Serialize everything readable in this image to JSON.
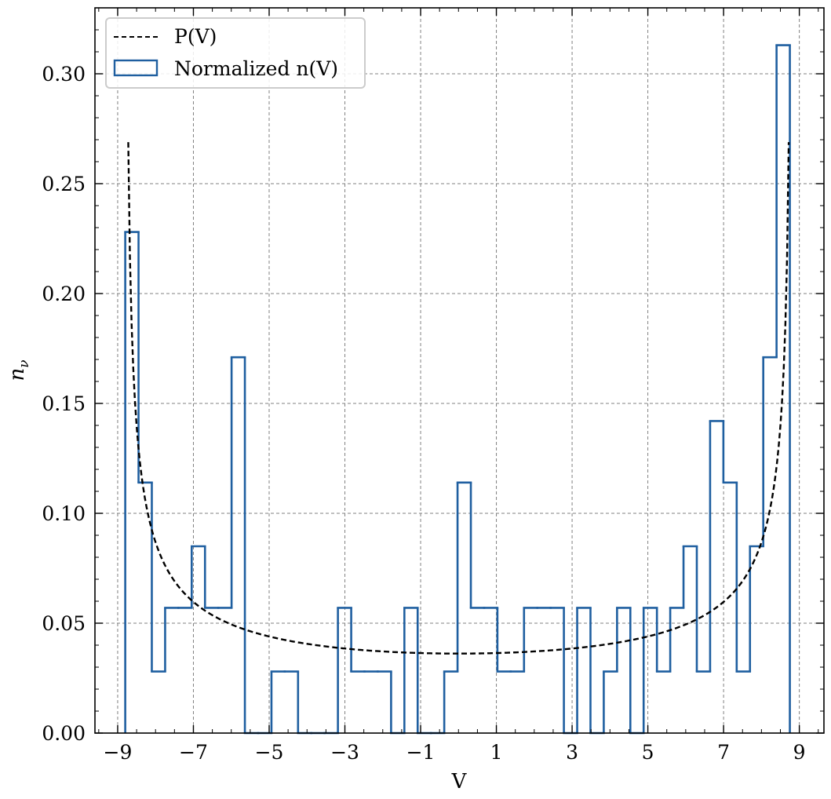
{
  "chart_data": {
    "type": "histogram",
    "xlabel": "V",
    "ylabel_base": "n",
    "ylabel_sub": "ν",
    "xlim": [
      -9.6,
      9.65
    ],
    "ylim": [
      0,
      0.33
    ],
    "x_ticks": [
      -9,
      -7,
      -5,
      -3,
      -1,
      1,
      3,
      5,
      7,
      9
    ],
    "x_tick_labels": [
      "−9",
      "−7",
      "−5",
      "−3",
      "−1",
      "1",
      "3",
      "5",
      "7",
      "9"
    ],
    "y_ticks": [
      0,
      0.05,
      0.1,
      0.15,
      0.2,
      0.25,
      0.3
    ],
    "y_tick_labels": [
      "0.00",
      "0.05",
      "0.10",
      "0.15",
      "0.20",
      "0.25",
      "0.30"
    ],
    "grid": true,
    "legend_position": "top-left",
    "colors": {
      "histogram": "#1f5fa0",
      "curve": "#000000",
      "grid": "#808080"
    },
    "series": [
      {
        "name": "P(V)",
        "kind": "curve",
        "amplitude": 8.8,
        "x_range": [
          -8.72,
          8.72
        ]
      },
      {
        "name": "Normalized n(V)",
        "kind": "histogram",
        "bin_edges": [
          -8.8,
          -8.449,
          -8.098,
          -7.747,
          -7.396,
          -7.045,
          -6.694,
          -6.343,
          -5.992,
          -5.641,
          -5.29,
          -4.939,
          -4.588,
          -4.237,
          -3.886,
          -3.535,
          -3.184,
          -2.833,
          -2.482,
          -2.131,
          -1.78,
          -1.429,
          -1.078,
          -0.727,
          -0.376,
          -0.025,
          0.326,
          0.677,
          1.028,
          1.379,
          1.73,
          2.081,
          2.432,
          2.783,
          3.134,
          3.485,
          3.836,
          4.187,
          4.538,
          4.889,
          5.24,
          5.591,
          5.942,
          6.293,
          6.644,
          6.995,
          7.346,
          7.697,
          8.048,
          8.399,
          8.75
        ],
        "values": [
          0.228,
          0.114,
          0.028,
          0.057,
          0.057,
          0.085,
          0.057,
          0.057,
          0.171,
          0.0,
          0.0,
          0.028,
          0.028,
          0.0,
          0.0,
          0.0,
          0.057,
          0.028,
          0.028,
          0.028,
          0.0,
          0.057,
          0.0,
          0.0,
          0.028,
          0.114,
          0.057,
          0.057,
          0.028,
          0.028,
          0.057,
          0.057,
          0.057,
          0.0,
          0.057,
          0.0,
          0.028,
          0.057,
          0.0,
          0.057,
          0.028,
          0.057,
          0.085,
          0.028,
          0.142,
          0.114,
          0.028,
          0.085,
          0.171,
          0.313
        ]
      }
    ]
  }
}
